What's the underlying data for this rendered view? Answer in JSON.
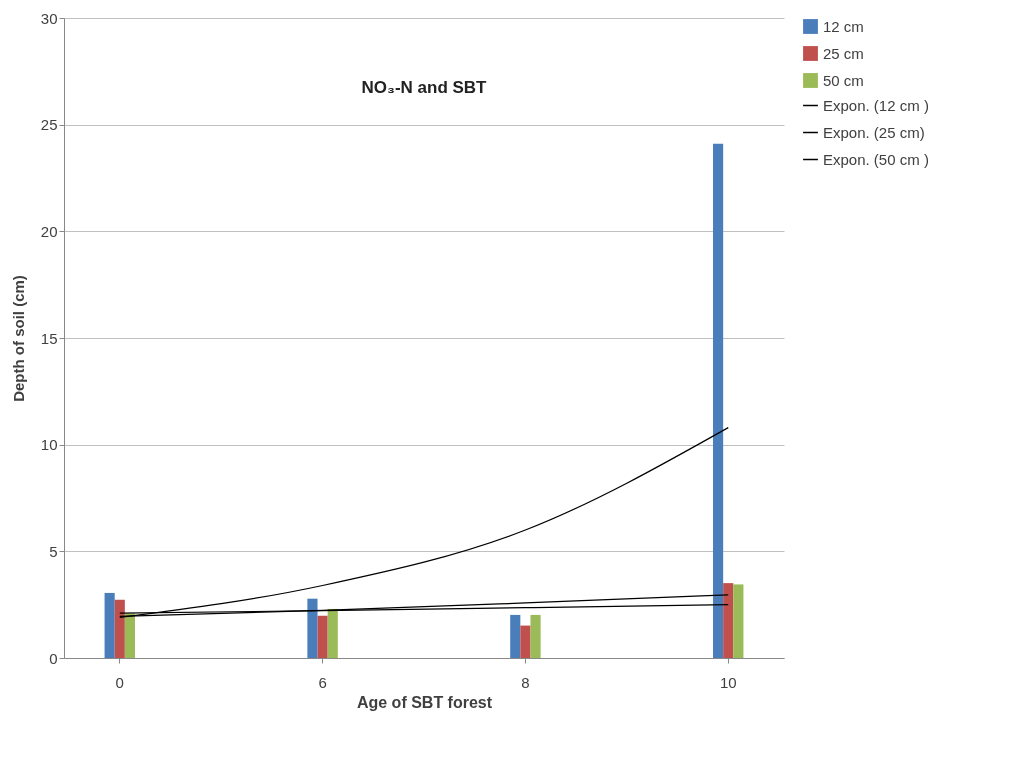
{
  "chart_data": {
    "type": "bar",
    "title": "NO₃-N and SBT",
    "xlabel": "Age of SBT forest",
    "ylabel": "Depth of soil (cm)",
    "categories": [
      "0",
      "6",
      "8",
      "10"
    ],
    "series": [
      {
        "name": "12 cm",
        "color": "#4a7ebb",
        "values": [
          3.05,
          2.78,
          2.02,
          24.1
        ]
      },
      {
        "name": "25 cm",
        "color": "#c0504d",
        "values": [
          2.73,
          1.98,
          1.52,
          3.51
        ]
      },
      {
        "name": "50 cm",
        "color": "#9bbb59",
        "values": [
          2.09,
          2.3,
          2.02,
          3.45
        ]
      },
      {
        "name": "Expon. (12 cm )",
        "type": "line",
        "color": "#000000",
        "x": [
          "0",
          "6",
          "8",
          "10"
        ],
        "values": [
          1.9,
          3.4,
          6.0,
          10.8
        ]
      },
      {
        "name": "Expon. (25 cm)",
        "type": "line",
        "color": "#000000",
        "x": [
          "0",
          "6",
          "8",
          "10"
        ],
        "values": [
          2.1,
          2.22,
          2.36,
          2.5
        ]
      },
      {
        "name": "Expon. (50 cm )",
        "type": "line",
        "color": "#000000",
        "x": [
          "0",
          "6",
          "8",
          "10"
        ],
        "values": [
          1.95,
          2.23,
          2.58,
          2.96
        ]
      }
    ],
    "ylim": [
      0,
      30
    ],
    "yticks": [
      0,
      5,
      10,
      15,
      20,
      25,
      30
    ],
    "grid": "y",
    "legend": "right"
  }
}
